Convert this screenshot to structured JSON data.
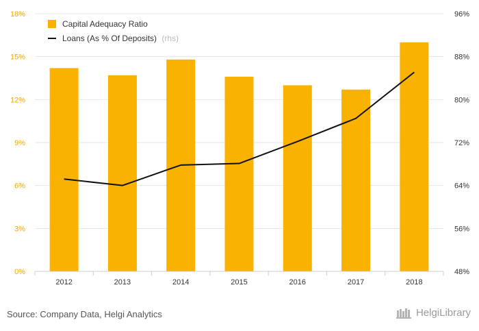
{
  "chart_data": {
    "type": "bar+line",
    "categories": [
      "2012",
      "2013",
      "2014",
      "2015",
      "2016",
      "2017",
      "2018"
    ],
    "series": [
      {
        "name": "Capital Adequacy Ratio",
        "type": "bar",
        "axis": "left",
        "color": "#f9b200",
        "values": [
          14.2,
          13.7,
          14.8,
          13.6,
          13.0,
          12.7,
          16.0
        ]
      },
      {
        "name": "Loans (As % Of Deposits)",
        "note": "(rhs)",
        "type": "line",
        "axis": "right",
        "color": "#111111",
        "values": [
          65.2,
          64.0,
          67.8,
          68.1,
          72.2,
          76.5,
          85.1
        ]
      }
    ],
    "y_left": {
      "ticks": [
        "0%",
        "3%",
        "6%",
        "9%",
        "12%",
        "15%",
        "18%"
      ],
      "min": 0,
      "max": 18
    },
    "y_right": {
      "ticks": [
        "48%",
        "56%",
        "64%",
        "72%",
        "80%",
        "88%",
        "96%"
      ],
      "min": 48,
      "max": 96
    },
    "grid": true,
    "legend": "top-left"
  },
  "footer": {
    "source": "Source: Company Data, Helgi Analytics",
    "brand": "HelgiLibrary"
  }
}
